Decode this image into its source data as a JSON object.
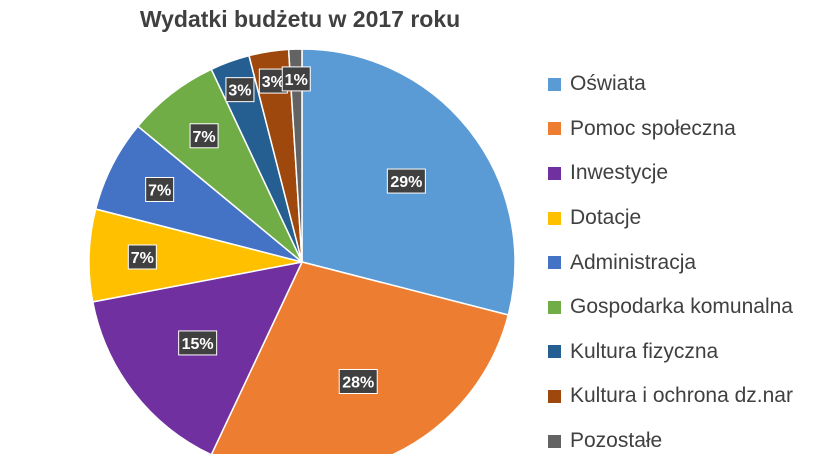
{
  "chart_data": {
    "type": "pie",
    "title": "Wydatki budżetu w 2017 roku",
    "slices": [
      {
        "label": "Oświata",
        "value": 29,
        "data_label": "29%",
        "color": "#5B9BD5"
      },
      {
        "label": "Pomoc społeczna",
        "value": 28,
        "data_label": "28%",
        "color": "#ED7D31"
      },
      {
        "label": "Inwestycje",
        "value": 15,
        "data_label": "15%",
        "color": "#7030A0"
      },
      {
        "label": "Dotacje",
        "value": 7,
        "data_label": "7%",
        "color": "#FFC000"
      },
      {
        "label": "Administracja",
        "value": 7,
        "data_label": "7%",
        "color": "#4472C4"
      },
      {
        "label": "Gospodarka komunalna",
        "value": 7,
        "data_label": "7%",
        "color": "#70AD47"
      },
      {
        "label": "Kultura fizyczna",
        "value": 3,
        "data_label": "3%",
        "color": "#255E91"
      },
      {
        "label": "Kultura i ochrona dz.nar",
        "value": 3,
        "data_label": "3%",
        "color": "#9E480E"
      },
      {
        "label": "Pozostałe",
        "value": 1,
        "data_label": "1%",
        "color": "#636363"
      }
    ],
    "legend_position": "right",
    "label_style": {
      "background": "#404040",
      "text_color": "#ffffff"
    }
  }
}
